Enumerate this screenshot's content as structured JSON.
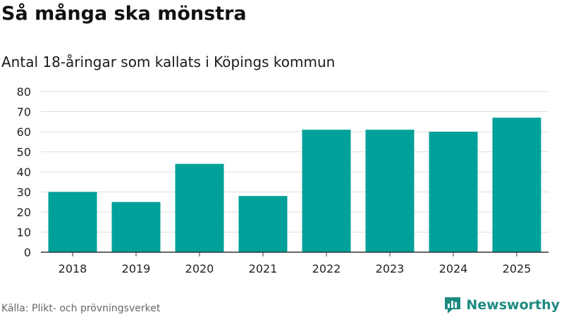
{
  "title": "Så många ska mönstra",
  "subtitle": "Antal 18-åringar som kallats i Köpings kommun",
  "source": "Källa: Plikt- och prövningsverket",
  "brand": {
    "name": "Newsworthy",
    "icon": "newsworthy-logo-icon",
    "color": "#1e8a80"
  },
  "chart_data": {
    "type": "bar",
    "title": "Så många ska mönstra",
    "subtitle": "Antal 18-åringar som kallats i Köpings kommun",
    "xlabel": "",
    "ylabel": "",
    "categories": [
      "2018",
      "2019",
      "2020",
      "2021",
      "2022",
      "2023",
      "2024",
      "2025"
    ],
    "values": [
      30,
      25,
      44,
      28,
      61,
      61,
      60,
      67
    ],
    "ylim": [
      0,
      80
    ],
    "yticks": [
      0,
      10,
      20,
      30,
      40,
      50,
      60,
      70,
      80
    ],
    "bar_color": "#00a19a",
    "grid": true
  }
}
